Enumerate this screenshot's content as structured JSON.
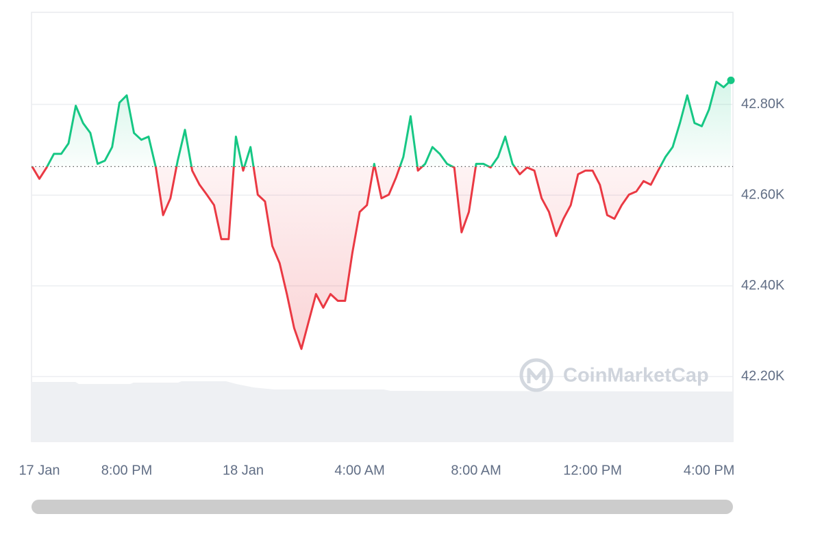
{
  "chart_data": {
    "type": "line",
    "watermark": "CoinMarketCap",
    "x": [
      16.75,
      17,
      17.25,
      17.5,
      17.75,
      18,
      18.25,
      18.5,
      18.75,
      19,
      19.25,
      19.5,
      19.75,
      20,
      20.25,
      20.5,
      20.75,
      21,
      21.25,
      21.5,
      21.75,
      22,
      22.25,
      22.5,
      22.75,
      23,
      23.25,
      23.5,
      23.75,
      24,
      24.25,
      24.5,
      24.75,
      25,
      25.25,
      25.5,
      25.75,
      26,
      26.25,
      26.5,
      26.75,
      27,
      27.25,
      27.5,
      27.75,
      28,
      28.25,
      28.5,
      28.75,
      29,
      29.25,
      29.5,
      29.75,
      30,
      30.25,
      30.5,
      30.75,
      31,
      31.25,
      31.5,
      31.75,
      32,
      32.25,
      32.5,
      32.75,
      33,
      33.25,
      33.5,
      33.75,
      34,
      34.25,
      34.5,
      34.75,
      35,
      35.25,
      35.5,
      35.75,
      36,
      36.25,
      36.5,
      36.75,
      37,
      37.25,
      37.5,
      37.75,
      38,
      38.25,
      38.5,
      38.75,
      39,
      39.25,
      39.5,
      39.75,
      40,
      40.25,
      40.5,
      40.75
    ],
    "values": [
      42663,
      42636,
      42661,
      42691,
      42691,
      42714,
      42797,
      42759,
      42737,
      42669,
      42676,
      42706,
      42804,
      42820,
      42737,
      42722,
      42729,
      42661,
      42556,
      42593,
      42676,
      42744,
      42654,
      42623,
      42601,
      42578,
      42503,
      42503,
      42729,
      42654,
      42706,
      42601,
      42586,
      42488,
      42450,
      42382,
      42307,
      42261,
      42322,
      42382,
      42352,
      42382,
      42367,
      42367,
      42473,
      42563,
      42578,
      42669,
      42593,
      42601,
      42639,
      42684,
      42774,
      42654,
      42669,
      42706,
      42691,
      42669,
      42661,
      42518,
      42563,
      42669,
      42669,
      42661,
      42684,
      42729,
      42669,
      42646,
      42661,
      42654,
      42593,
      42563,
      42510,
      42548,
      42578,
      42646,
      42654,
      42654,
      42623,
      42556,
      42548,
      42578,
      42601,
      42608,
      42631,
      42623,
      42654,
      42684,
      42706,
      42759,
      42820,
      42759,
      42752,
      42789,
      42850,
      42838,
      42853
    ],
    "baseline": 42663,
    "up_color": "#16c784",
    "down_color": "#ea3943",
    "xlim": [
      16.73,
      40.82
    ],
    "ylim": [
      42057,
      43003
    ],
    "xticks": [
      {
        "value": 17,
        "label": "17 Jan"
      },
      {
        "value": 20,
        "label": "8:00 PM"
      },
      {
        "value": 24,
        "label": "18 Jan"
      },
      {
        "value": 28,
        "label": "4:00 AM"
      },
      {
        "value": 32,
        "label": "8:00 AM"
      },
      {
        "value": 36,
        "label": "12:00 PM"
      },
      {
        "value": 40,
        "label": "4:00 PM"
      }
    ],
    "yticks": [
      {
        "value": 42200,
        "label": "42.20K"
      },
      {
        "value": 42400,
        "label": "42.40K"
      },
      {
        "value": 42600,
        "label": "42.60K"
      },
      {
        "value": 42800,
        "label": "42.80K"
      }
    ],
    "grid": true
  }
}
